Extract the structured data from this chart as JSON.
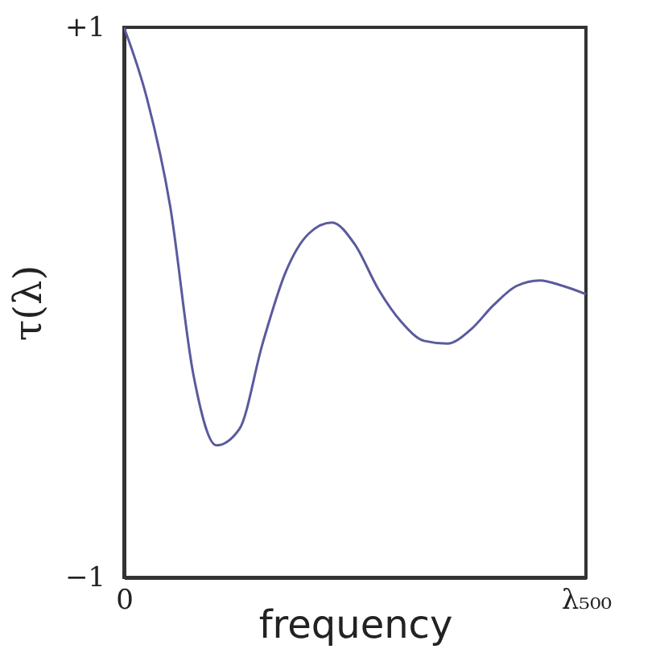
{
  "chart_data": {
    "type": "line",
    "xlabel": "frequency",
    "ylabel": "τ(λ)",
    "categories": [
      "0",
      null,
      null,
      null,
      null,
      null,
      null,
      null,
      null,
      null,
      null,
      null,
      null,
      null,
      null,
      null,
      null,
      null,
      null,
      null,
      "λ₅₀₀"
    ],
    "series": [
      {
        "color": "#5a5a9e",
        "values": [
          1,
          0.74,
          0.35,
          -0.26,
          -0.52,
          -0.46,
          -0.15,
          0.11,
          0.25,
          0.29,
          0.21,
          0.05,
          -0.07,
          -0.14,
          -0.15,
          -0.1,
          -0.01,
          0.06,
          0.08,
          0.06,
          0.03
        ]
      }
    ],
    "ylim": [
      -1,
      1
    ],
    "yticks": [
      {
        "value": 1,
        "label": "+1"
      },
      {
        "value": -1,
        "label": "−1"
      }
    ],
    "grid": false,
    "marker": "none",
    "line_style": "solid"
  }
}
